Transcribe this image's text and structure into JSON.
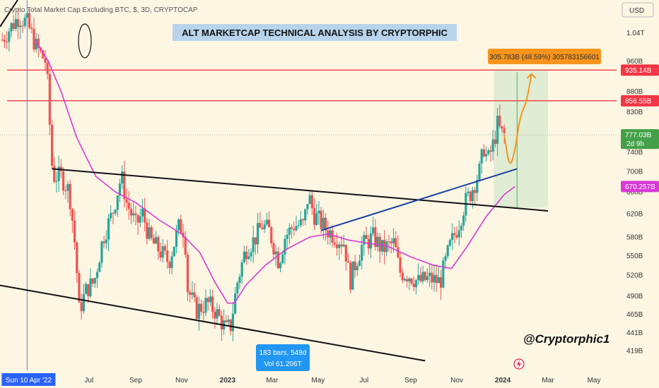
{
  "header": {
    "symbol_line": "Crypto Total Market Cap Excluding BTC, $, 3D, CRYPTOCAP",
    "currency_button": "USD"
  },
  "title": "ALT MARKETCAP TECHNICAL ANALYSIS BY CRYPTORPHIC",
  "signature": "@Cryptorphic1",
  "measure_label": "305.783B (48.59%) 305783156601",
  "cursor_box": {
    "line1": "183 bars, 548d",
    "line2": "Vol 61.206T"
  },
  "date_cursor_label": "Sun 10 Apr '22",
  "price_tags": {
    "upper_resistance": "935.14B",
    "lower_resistance": "856.55B",
    "last_price": "777.03B",
    "countdown": "2d 9h",
    "moving_average": "670.257B"
  },
  "colors": {
    "background": "#fdf6e3",
    "candle_up": "#26a69a",
    "candle_down": "#ef5350",
    "moving_average": "#d63bd6",
    "resistance": "#f23645",
    "support_trendline": "#1e3fa8",
    "projection": "#f7941d",
    "target_zone": "#c8e6c9",
    "cursor_line": "#5b7fe0",
    "cursor_tag": "#2962ff",
    "cursor_box": "#2196f3",
    "title_highlight": "#b8d4ec",
    "last_price_tag": "#43a047"
  },
  "chart_data": {
    "type": "candlestick",
    "title": "ALT MARKETCAP TECHNICAL ANALYSIS BY CRYPTORPHIC",
    "timeframe": "3D",
    "y_scale": "log",
    "ylim": [
      400,
      1120
    ],
    "xlim": [
      "2022-03-05",
      "2024-05-31"
    ],
    "y_ticks": [
      {
        "value": 1040,
        "label": "1.04T"
      },
      {
        "value": 960,
        "label": "960B"
      },
      {
        "value": 880,
        "label": "880B"
      },
      {
        "value": 830,
        "label": "830B"
      },
      {
        "value": 740,
        "label": "740B"
      },
      {
        "value": 700,
        "label": "700B"
      },
      {
        "value": 660,
        "label": "660B"
      },
      {
        "value": 620,
        "label": "620B"
      },
      {
        "value": 580,
        "label": "580B"
      },
      {
        "value": 550,
        "label": "550B"
      },
      {
        "value": 520,
        "label": "520B"
      },
      {
        "value": 490,
        "label": "490B"
      },
      {
        "value": 465,
        "label": "465B"
      },
      {
        "value": 441,
        "label": "441B"
      },
      {
        "value": 419,
        "label": "419B"
      }
    ],
    "x_ticks": [
      {
        "date": "2022-05-01",
        "label": "May"
      },
      {
        "date": "2022-07-01",
        "label": "Jul"
      },
      {
        "date": "2022-09-01",
        "label": "Sep"
      },
      {
        "date": "2022-11-01",
        "label": "Nov"
      },
      {
        "date": "2023-01-01",
        "label": "2023"
      },
      {
        "date": "2023-03-01",
        "label": "Mar"
      },
      {
        "date": "2023-05-01",
        "label": "May"
      },
      {
        "date": "2023-07-01",
        "label": "Jul"
      },
      {
        "date": "2023-09-01",
        "label": "Sep"
      },
      {
        "date": "2023-11-01",
        "label": "Nov"
      },
      {
        "date": "2024-01-01",
        "label": "2024"
      },
      {
        "date": "2024-03-01",
        "label": "Mar"
      },
      {
        "date": "2024-05-01",
        "label": "May"
      }
    ],
    "close_path": [
      [
        "2022-03-08",
        1020
      ],
      [
        "2022-03-20",
        1060
      ],
      [
        "2022-03-30",
        1090
      ],
      [
        "2022-04-10",
        1070
      ],
      [
        "2022-04-22",
        1000
      ],
      [
        "2022-05-04",
        960
      ],
      [
        "2022-05-08",
        880
      ],
      [
        "2022-05-11",
        760
      ],
      [
        "2022-05-14",
        690
      ],
      [
        "2022-05-25",
        690
      ],
      [
        "2022-06-05",
        660
      ],
      [
        "2022-06-13",
        560
      ],
      [
        "2022-06-18",
        470
      ],
      [
        "2022-06-28",
        500
      ],
      [
        "2022-07-08",
        510
      ],
      [
        "2022-07-20",
        580
      ],
      [
        "2022-08-01",
        620
      ],
      [
        "2022-08-13",
        690
      ],
      [
        "2022-08-20",
        640
      ],
      [
        "2022-09-01",
        600
      ],
      [
        "2022-09-10",
        620
      ],
      [
        "2022-09-20",
        575
      ],
      [
        "2022-10-01",
        560
      ],
      [
        "2022-10-15",
        540
      ],
      [
        "2022-10-29",
        600
      ],
      [
        "2022-11-05",
        590
      ],
      [
        "2022-11-09",
        500
      ],
      [
        "2022-11-20",
        470
      ],
      [
        "2022-12-05",
        480
      ],
      [
        "2022-12-15",
        470
      ],
      [
        "2022-12-30",
        445
      ],
      [
        "2023-01-05",
        450
      ],
      [
        "2023-01-14",
        510
      ],
      [
        "2023-01-25",
        560
      ],
      [
        "2023-02-05",
        575
      ],
      [
        "2023-02-16",
        600
      ],
      [
        "2023-02-25",
        590
      ],
      [
        "2023-03-10",
        540
      ],
      [
        "2023-03-18",
        580
      ],
      [
        "2023-03-30",
        600
      ],
      [
        "2023-04-12",
        600
      ],
      [
        "2023-04-18",
        655
      ],
      [
        "2023-04-25",
        620
      ],
      [
        "2023-05-10",
        595
      ],
      [
        "2023-05-25",
        580
      ],
      [
        "2023-06-05",
        570
      ],
      [
        "2023-06-12",
        510
      ],
      [
        "2023-06-20",
        540
      ],
      [
        "2023-06-28",
        565
      ],
      [
        "2023-07-13",
        580
      ],
      [
        "2023-07-25",
        560
      ],
      [
        "2023-08-10",
        570
      ],
      [
        "2023-08-17",
        525
      ],
      [
        "2023-08-30",
        520
      ],
      [
        "2023-09-11",
        510
      ],
      [
        "2023-09-25",
        515
      ],
      [
        "2023-10-10",
        510
      ],
      [
        "2023-10-23",
        565
      ],
      [
        "2023-11-03",
        600
      ],
      [
        "2023-11-12",
        640
      ],
      [
        "2023-11-20",
        660
      ],
      [
        "2023-12-01",
        700
      ],
      [
        "2023-12-07",
        750
      ],
      [
        "2023-12-12",
        720
      ],
      [
        "2023-12-20",
        760
      ],
      [
        "2023-12-25",
        800
      ],
      [
        "2023-12-30",
        780
      ],
      [
        "2024-01-03",
        777
      ]
    ],
    "moving_average": [
      [
        "2022-04-20",
        1020
      ],
      [
        "2022-05-08",
        960
      ],
      [
        "2022-05-25",
        880
      ],
      [
        "2022-06-15",
        770
      ],
      [
        "2022-07-10",
        690
      ],
      [
        "2022-08-05",
        660
      ],
      [
        "2022-09-01",
        640
      ],
      [
        "2022-10-01",
        610
      ],
      [
        "2022-11-01",
        585
      ],
      [
        "2022-11-25",
        555
      ],
      [
        "2022-12-15",
        510
      ],
      [
        "2023-01-01",
        480
      ],
      [
        "2023-01-10",
        480
      ],
      [
        "2023-01-25",
        505
      ],
      [
        "2023-02-20",
        535
      ],
      [
        "2023-03-20",
        560
      ],
      [
        "2023-04-20",
        580
      ],
      [
        "2023-05-15",
        585
      ],
      [
        "2023-06-10",
        575
      ],
      [
        "2023-07-05",
        570
      ],
      [
        "2023-08-01",
        565
      ],
      [
        "2023-09-01",
        548
      ],
      [
        "2023-10-01",
        535
      ],
      [
        "2023-10-25",
        530
      ],
      [
        "2023-11-15",
        565
      ],
      [
        "2023-12-10",
        615
      ],
      [
        "2024-01-03",
        655
      ],
      [
        "2024-01-17",
        670
      ]
    ],
    "lines": [
      {
        "name": "descending-channel-upper",
        "from": [
          "2022-05-13",
          705
        ],
        "to": [
          "2024-03-01",
          625
        ]
      },
      {
        "name": "descending-channel-lower",
        "from": [
          "2022-03-05",
          505
        ],
        "to": [
          "2023-09-20",
          407
        ]
      },
      {
        "name": "support-trendline",
        "from": [
          "2023-05-05",
          591
        ],
        "to": [
          "2024-01-20",
          705
        ]
      }
    ],
    "horizontal_levels": [
      {
        "name": "upper-resistance",
        "value": 935.14
      },
      {
        "name": "lower-resistance",
        "value": 856.55
      }
    ],
    "target_zone": {
      "date_from": "2023-12-20",
      "date_to": "2024-03-01",
      "low": 631,
      "high": 937
    },
    "projection_path": [
      [
        "2024-01-03",
        777
      ],
      [
        "2024-01-10",
        705
      ],
      [
        "2024-01-17",
        740
      ],
      [
        "2024-01-24",
        820
      ],
      [
        "2024-02-01",
        850
      ],
      [
        "2024-02-06",
        900
      ],
      [
        "2024-02-08",
        925
      ]
    ],
    "cursor_date": "2022-04-10",
    "measurement": {
      "change": "305.783B",
      "percent": "48.59%",
      "bars": 183,
      "days": 548
    }
  }
}
